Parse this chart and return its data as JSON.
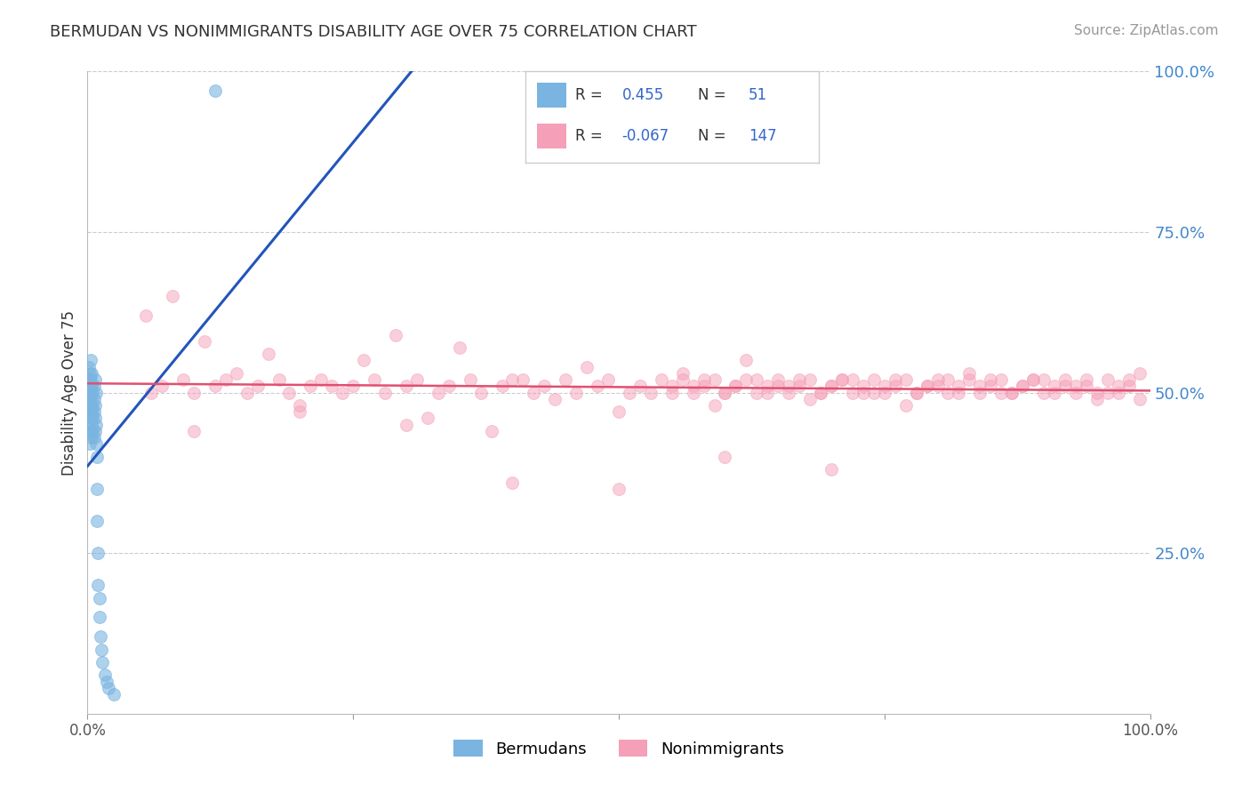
{
  "title": "BERMUDAN VS NONIMMIGRANTS DISABILITY AGE OVER 75 CORRELATION CHART",
  "source": "Source: ZipAtlas.com",
  "ylabel": "Disability Age Over 75",
  "ylabel_tick_vals": [
    1.0,
    0.75,
    0.5,
    0.25
  ],
  "ylabel_tick_labels": [
    "100.0%",
    "75.0%",
    "50.0%",
    "25.0%"
  ],
  "bermudans_R": 0.455,
  "bermudans_N": 51,
  "nonimmigrants_R": -0.067,
  "nonimmigrants_N": 147,
  "blue_scatter_color": "#7ab4e0",
  "pink_scatter_color": "#f5a0b8",
  "blue_line_color": "#2255bb",
  "pink_line_color": "#e05070",
  "bg_color": "#ffffff",
  "grid_color": "#cccccc",
  "title_color": "#333333",
  "right_label_color": "#4488cc",
  "legend_R_color": "#3366cc",
  "legend_N_color": "#3366cc",
  "legend_label_color": "#333333",
  "source_color": "#999999",
  "bermudans_x": [
    0.001,
    0.001,
    0.001,
    0.001,
    0.001,
    0.002,
    0.002,
    0.002,
    0.002,
    0.002,
    0.003,
    0.003,
    0.003,
    0.003,
    0.003,
    0.003,
    0.004,
    0.004,
    0.004,
    0.004,
    0.004,
    0.005,
    0.005,
    0.005,
    0.005,
    0.006,
    0.006,
    0.006,
    0.006,
    0.007,
    0.007,
    0.007,
    0.007,
    0.008,
    0.008,
    0.008,
    0.009,
    0.009,
    0.009,
    0.01,
    0.01,
    0.011,
    0.011,
    0.012,
    0.013,
    0.014,
    0.016,
    0.018,
    0.02,
    0.025,
    0.12
  ],
  "bermudans_y": [
    0.48,
    0.5,
    0.52,
    0.45,
    0.54,
    0.42,
    0.49,
    0.51,
    0.47,
    0.53,
    0.44,
    0.46,
    0.5,
    0.48,
    0.52,
    0.55,
    0.43,
    0.47,
    0.51,
    0.45,
    0.53,
    0.44,
    0.48,
    0.5,
    0.46,
    0.43,
    0.47,
    0.49,
    0.51,
    0.44,
    0.46,
    0.48,
    0.52,
    0.42,
    0.45,
    0.5,
    0.4,
    0.35,
    0.3,
    0.25,
    0.2,
    0.18,
    0.15,
    0.12,
    0.1,
    0.08,
    0.06,
    0.05,
    0.04,
    0.03,
    0.97
  ],
  "nonimmigrants_x": [
    0.055,
    0.08,
    0.11,
    0.14,
    0.17,
    0.2,
    0.23,
    0.26,
    0.29,
    0.32,
    0.35,
    0.38,
    0.41,
    0.44,
    0.47,
    0.5,
    0.53,
    0.56,
    0.59,
    0.62,
    0.65,
    0.68,
    0.71,
    0.74,
    0.77,
    0.8,
    0.83,
    0.86,
    0.89,
    0.92,
    0.95,
    0.98,
    0.99,
    0.97,
    0.96,
    0.94,
    0.93,
    0.91,
    0.9,
    0.88,
    0.87,
    0.85,
    0.84,
    0.82,
    0.81,
    0.79,
    0.78,
    0.76,
    0.75,
    0.73,
    0.72,
    0.7,
    0.69,
    0.67,
    0.66,
    0.64,
    0.63,
    0.61,
    0.6,
    0.58,
    0.57,
    0.55,
    0.54,
    0.52,
    0.51,
    0.49,
    0.48,
    0.46,
    0.45,
    0.43,
    0.42,
    0.4,
    0.39,
    0.37,
    0.36,
    0.34,
    0.33,
    0.31,
    0.3,
    0.28,
    0.27,
    0.25,
    0.24,
    0.22,
    0.21,
    0.19,
    0.18,
    0.16,
    0.15,
    0.13,
    0.12,
    0.1,
    0.09,
    0.07,
    0.06,
    0.99,
    0.98,
    0.97,
    0.96,
    0.95,
    0.94,
    0.93,
    0.92,
    0.91,
    0.9,
    0.89,
    0.88,
    0.87,
    0.86,
    0.85,
    0.84,
    0.83,
    0.82,
    0.81,
    0.8,
    0.79,
    0.78,
    0.77,
    0.76,
    0.75,
    0.74,
    0.73,
    0.72,
    0.71,
    0.7,
    0.69,
    0.68,
    0.67,
    0.66,
    0.65,
    0.64,
    0.63,
    0.62,
    0.61,
    0.6,
    0.59,
    0.58,
    0.57,
    0.56,
    0.55,
    0.1,
    0.2,
    0.3,
    0.4,
    0.5,
    0.6,
    0.7
  ],
  "nonimmigrants_y": [
    0.62,
    0.65,
    0.58,
    0.53,
    0.56,
    0.48,
    0.51,
    0.55,
    0.59,
    0.46,
    0.57,
    0.44,
    0.52,
    0.49,
    0.54,
    0.47,
    0.5,
    0.53,
    0.48,
    0.55,
    0.51,
    0.49,
    0.52,
    0.5,
    0.48,
    0.51,
    0.53,
    0.5,
    0.52,
    0.51,
    0.5,
    0.52,
    0.53,
    0.51,
    0.5,
    0.52,
    0.51,
    0.5,
    0.52,
    0.51,
    0.5,
    0.52,
    0.51,
    0.5,
    0.52,
    0.51,
    0.5,
    0.52,
    0.51,
    0.5,
    0.52,
    0.51,
    0.5,
    0.52,
    0.51,
    0.5,
    0.52,
    0.51,
    0.5,
    0.52,
    0.51,
    0.5,
    0.52,
    0.51,
    0.5,
    0.52,
    0.51,
    0.5,
    0.52,
    0.51,
    0.5,
    0.52,
    0.51,
    0.5,
    0.52,
    0.51,
    0.5,
    0.52,
    0.51,
    0.5,
    0.52,
    0.51,
    0.5,
    0.52,
    0.51,
    0.5,
    0.52,
    0.51,
    0.5,
    0.52,
    0.51,
    0.5,
    0.52,
    0.51,
    0.5,
    0.49,
    0.51,
    0.5,
    0.52,
    0.49,
    0.51,
    0.5,
    0.52,
    0.51,
    0.5,
    0.52,
    0.51,
    0.5,
    0.52,
    0.51,
    0.5,
    0.52,
    0.51,
    0.5,
    0.52,
    0.51,
    0.5,
    0.52,
    0.51,
    0.5,
    0.52,
    0.51,
    0.5,
    0.52,
    0.51,
    0.5,
    0.52,
    0.51,
    0.5,
    0.52,
    0.51,
    0.5,
    0.52,
    0.51,
    0.5,
    0.52,
    0.51,
    0.5,
    0.52,
    0.51,
    0.44,
    0.47,
    0.45,
    0.36,
    0.35,
    0.4,
    0.38
  ]
}
